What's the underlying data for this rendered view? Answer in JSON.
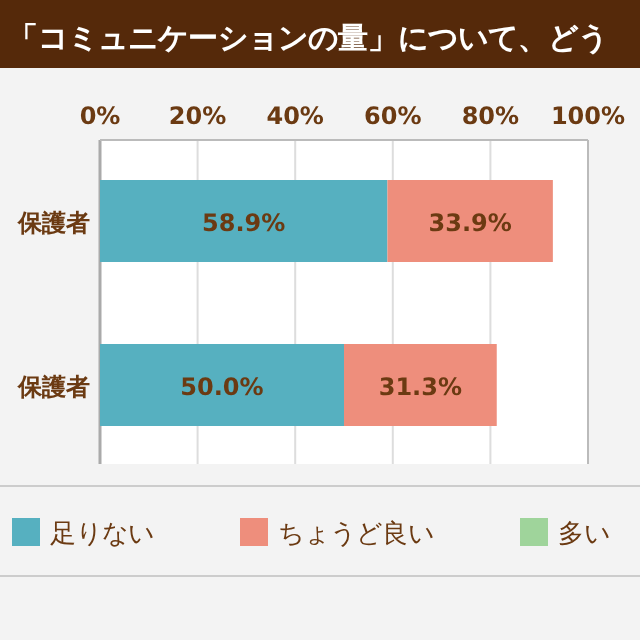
{
  "chart_data": {
    "type": "bar",
    "orientation": "horizontal",
    "stacked": true,
    "title": "「コミュニケーションの量」について、どう",
    "categories": [
      "保護者",
      "保護者"
    ],
    "series": [
      {
        "name": "足りない",
        "color": "#56b0c0",
        "values": [
          58.9,
          50.0
        ],
        "value_labels": [
          "58.9%",
          "50.0%"
        ]
      },
      {
        "name": "ちょうど良い",
        "color": "#ee8e7c",
        "values": [
          33.9,
          31.3
        ],
        "value_labels": [
          "33.9%",
          "31.3%"
        ]
      },
      {
        "name": "多い",
        "color": "#9fd49b",
        "values": [
          null,
          null
        ]
      }
    ],
    "xlim": [
      0,
      100
    ],
    "xticks": [
      {
        "value": 0,
        "label": "0%"
      },
      {
        "value": 20,
        "label": "20%"
      },
      {
        "value": 40,
        "label": "40%"
      },
      {
        "value": 60,
        "label": "60%"
      },
      {
        "value": 80,
        "label": "80%"
      },
      {
        "value": 100,
        "label": "100%"
      }
    ],
    "grid": "x",
    "legend": "bottom"
  }
}
